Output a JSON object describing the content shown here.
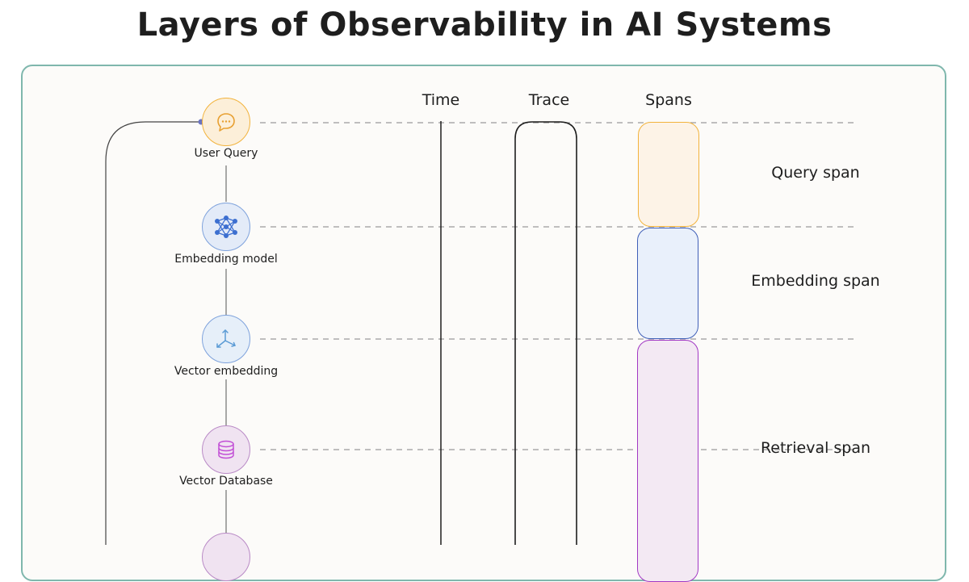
{
  "title": "Layers of Observability in AI Systems",
  "columns": {
    "time": "Time",
    "trace": "Trace",
    "spans": "Spans"
  },
  "nodes": [
    {
      "label": "User Query",
      "icon": "chat-bubble-icon",
      "color": "#f2b33d"
    },
    {
      "label": "Embedding model",
      "icon": "neural-network-icon",
      "color": "#4a7fd6"
    },
    {
      "label": "Vector embedding",
      "icon": "axes-3d-icon",
      "color": "#5b9bd5"
    },
    {
      "label": "Vector Database",
      "icon": "database-icon",
      "color": "#c24fd6"
    }
  ],
  "spans": [
    {
      "label": "Query span",
      "color": "#f2b33d",
      "fill": "#fdf3e7"
    },
    {
      "label": "Embedding span",
      "color": "#3f5fb8",
      "fill": "#e9f0fb"
    },
    {
      "label": "Retrieval span",
      "color": "#a238c4",
      "fill": "#f3e9f3"
    }
  ],
  "colors": {
    "panel_border": "#7fb7ad",
    "panel_bg": "#fcfbf9",
    "text": "#1e1e1e"
  }
}
